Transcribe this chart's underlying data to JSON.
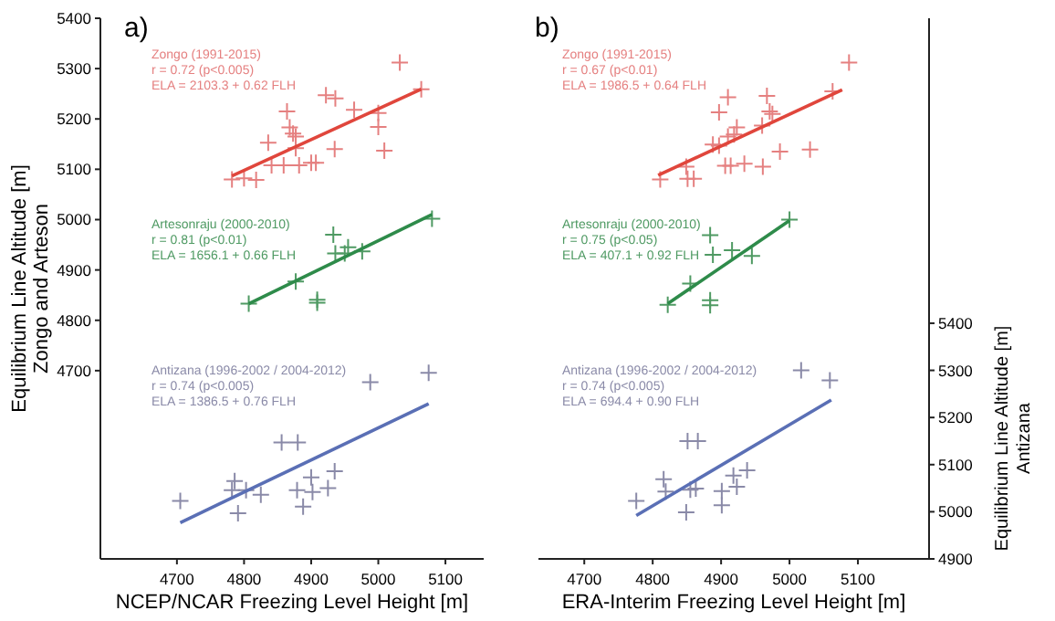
{
  "chart_data": [
    {
      "type": "scatter",
      "title": "a)",
      "xlabel": "NCEP/NCAR Freezing Level Height [m]",
      "ylabel": "Equilibrium Line Altitude [m]\nZongo and Arteson",
      "annotations": [
        "Zongo (1991-2015)",
        "r = 0.72 (p<0.005)",
        "ELA = 2103.3 + 0.62 FLH",
        "Artesonraju (2000-2010)",
        "r = 0.81 (p<0.01)",
        "ELA = 1656.1 + 0.66 FLH",
        "Antizana (1996-2002 / 2004-2012)",
        "r = 0.74 (p<0.005)",
        "ELA = 1386.5 + 0.76 FLH"
      ],
      "xlim": [
        4586,
        5157
      ],
      "xticks": [
        4700,
        4800,
        4900,
        5000,
        5100
      ],
      "ylim": [
        4326,
        5400
      ],
      "yticks": [
        4700,
        4800,
        4900,
        5000,
        5100,
        5200,
        5300,
        5400
      ],
      "y2lim": [
        4900,
        6047
      ],
      "series": [
        {
          "marker": "cross",
          "color": "#e58080",
          "x": [
            5032,
            5064,
            4922,
            4936,
            4964,
            5000,
            5000,
            5009,
            4935,
            4864,
            4868,
            4873,
            4877,
            4836,
            4877,
            4841,
            4859,
            4882,
            4900,
            4907,
            4782,
            4800,
            4818
          ],
          "values": [
            5312,
            5259,
            5247,
            5241,
            5218,
            5212,
            5184,
            5137,
            5140,
            5215,
            5183,
            5171,
            5165,
            5153,
            5142,
            5108,
            5108,
            5108,
            5113,
            5113,
            5080,
            5082,
            5079
          ]
        },
        {
          "type": "line",
          "color": "#e0463c",
          "x": [
            4782,
            5064
          ],
          "values": [
            5087,
            5259
          ]
        },
        {
          "marker": "cross",
          "color": "#4f9a63",
          "x": [
            5080,
            4933,
            4936,
            4950,
            4955,
            4976,
            4877,
            4909,
            4909,
            4807
          ],
          "values": [
            5002,
            4970,
            4933,
            4933,
            4945,
            4937,
            4877,
            4841,
            4835,
            4833
          ]
        },
        {
          "type": "line",
          "color": "#2e8b4a",
          "x": [
            4807,
            5080
          ],
          "values": [
            4833,
            5010
          ]
        },
        {
          "marker": "cross",
          "color": "#8a8aa8",
          "axis": "y2",
          "x": [
            4988,
            5075,
            4856,
            4880,
            4935,
            4900,
            4786,
            4782,
            4803,
            4825,
            4879,
            4902,
            4925,
            4705,
            4791,
            4888
          ],
          "values": [
            5275,
            5295,
            5147,
            5147,
            5086,
            5073,
            5065,
            5046,
            5046,
            5036,
            5046,
            5042,
            5050,
            5023,
            4997,
            5011
          ]
        },
        {
          "type": "line",
          "color": "#5a6fb5",
          "axis": "y2",
          "x": [
            4705,
            5075
          ],
          "values": [
            4977,
            5229
          ]
        }
      ]
    },
    {
      "type": "scatter",
      "title": "b)",
      "xlabel": "ERA-Interim Freezing Level Height [m]",
      "y2label": "Equilibrium Line Altitude [m]\nAntizana",
      "annotations": [
        "Zongo (1991-2015)",
        "r = 0.67 (p<0.01)",
        "ELA = 1986.5 + 0.64 FLH",
        "Artesonraju (2000-2010)",
        "r = 0.75 (p<0.05)",
        "ELA = 407.1 + 0.92 FLH",
        "Antizana (1996-2002 / 2004-2012)",
        "r = 0.74 (p<0.005)",
        "ELA = 694.4 + 0.90 FLH"
      ],
      "xlim": [
        4633,
        5204
      ],
      "xticks": [
        4700,
        4800,
        4900,
        5000,
        5100
      ],
      "ylim": [
        4326,
        5400
      ],
      "y2lim": [
        4900,
        6047
      ],
      "y2ticks": [
        4900,
        5000,
        5100,
        5200,
        5300,
        5400
      ],
      "series": [
        {
          "marker": "cross",
          "color": "#e58080",
          "x": [
            5087,
            5063,
            4910,
            4967,
            4897,
            4971,
            4975,
            4923,
            4919,
            4910,
            4960,
            4888,
            4897,
            4986,
            5030,
            4849,
            4906,
            4914,
            4934,
            4961,
            4811,
            4851,
            4860
          ],
          "values": [
            5312,
            5255,
            5243,
            5246,
            5213,
            5215,
            5210,
            5183,
            5169,
            5165,
            5187,
            5149,
            5147,
            5135,
            5139,
            5105,
            5107,
            5107,
            5111,
            5105,
            5080,
            5081,
            5081
          ]
        },
        {
          "type": "line",
          "color": "#e0463c",
          "x": [
            4808,
            5077
          ],
          "values": [
            5088,
            5258
          ]
        },
        {
          "marker": "cross",
          "color": "#4f9a63",
          "x": [
            5000,
            4884,
            4888,
            4916,
            4945,
            4855,
            4884,
            4884,
            4822
          ],
          "values": [
            5000,
            4969,
            4930,
            4939,
            4928,
            4873,
            4840,
            4830,
            4831
          ]
        },
        {
          "type": "line",
          "color": "#2e8b4a",
          "x": [
            4822,
            5000
          ],
          "values": [
            4833,
            4998
          ]
        },
        {
          "marker": "cross",
          "color": "#8a8aa8",
          "axis": "y2",
          "x": [
            5017,
            5059,
            4851,
            4866,
            4938,
            4918,
            4816,
            4923,
            4819,
            4855,
            4863,
            4901,
            4776,
            4849,
            4901
          ],
          "values": [
            5300,
            5279,
            5150,
            5150,
            5088,
            5077,
            5069,
            5053,
            5043,
            5047,
            5049,
            5044,
            5023,
            4999,
            5014
          ]
        },
        {
          "type": "line",
          "color": "#5a6fb5",
          "axis": "y2",
          "x": [
            4776,
            5061
          ],
          "values": [
            4992,
            5237
          ]
        }
      ]
    }
  ]
}
